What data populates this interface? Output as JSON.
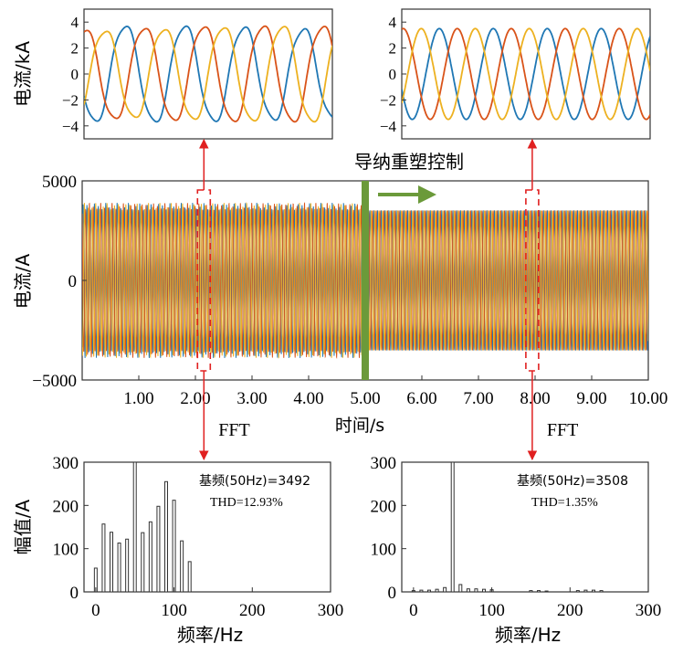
{
  "chart_data": [
    {
      "id": "zoom_before",
      "type": "line",
      "ylabel": "电流/kA",
      "ylim": [
        -5,
        5
      ],
      "yticks": [
        4,
        2,
        0,
        -2,
        -4
      ],
      "ytick_labels": [
        "4",
        "2",
        "0",
        "−2",
        "−4"
      ],
      "series": [
        {
          "phase": 1,
          "color": "#1f77b4",
          "amplitude": 3.6,
          "cycles": 4.2,
          "phase_deg": 200,
          "distortion": 0.13
        },
        {
          "phase": 2,
          "color": "#d95319",
          "amplitude": 3.6,
          "cycles": 4.2,
          "phase_deg": 80,
          "distortion": 0.13
        },
        {
          "phase": 3,
          "color": "#edb120",
          "amplitude": 3.6,
          "cycles": 4.2,
          "phase_deg": 320,
          "distortion": 0.13
        }
      ]
    },
    {
      "id": "zoom_after",
      "type": "line",
      "ylabel": "",
      "ylim": [
        -5,
        5
      ],
      "yticks": [
        4,
        2,
        0,
        -2,
        -4
      ],
      "ytick_labels": [
        "4",
        "2",
        "0",
        "−2",
        "−4"
      ],
      "series": [
        {
          "phase": 1,
          "color": "#1f77b4",
          "amplitude": 3.5,
          "cycles": 4.6,
          "phase_deg": 200,
          "distortion": 0.0
        },
        {
          "phase": 2,
          "color": "#d95319",
          "amplitude": 3.5,
          "cycles": 4.6,
          "phase_deg": 80,
          "distortion": 0.0
        },
        {
          "phase": 3,
          "color": "#edb120",
          "amplitude": 3.5,
          "cycles": 4.6,
          "phase_deg": 320,
          "distortion": 0.0
        }
      ]
    },
    {
      "id": "main_waveform",
      "type": "line",
      "ylabel": "电流/A",
      "xlabel": "时间/s",
      "xlim": [
        0,
        10
      ],
      "ylim": [
        -5000,
        5000
      ],
      "xticks": [
        1,
        2,
        3,
        4,
        5,
        6,
        7,
        8,
        9,
        10
      ],
      "xtick_labels": [
        "1.00",
        "2.00",
        "3.00",
        "4.00",
        "5.00",
        "6.00",
        "7.00",
        "8.00",
        "9.00",
        "10.00"
      ],
      "yticks": [
        5000,
        0,
        -5000
      ],
      "ytick_labels": [
        "5000",
        "0",
        "−5000"
      ],
      "control_switch_time": 5,
      "control_label": "导纳重塑控制",
      "control_color": "#6b9a3a",
      "before": {
        "envelope_peak": 3900,
        "envelope_trough": -3900,
        "mean_amplitude": 3550
      },
      "after": {
        "envelope_peak": 3550,
        "envelope_trough": -3550,
        "mean_amplitude": 3520
      },
      "zoom_windows": [
        2.15,
        7.95
      ],
      "colors": [
        "#1f77b4",
        "#d95319",
        "#edb120"
      ],
      "fft_label": "FFT"
    },
    {
      "id": "fft_before",
      "type": "bar",
      "xlabel": "频率/Hz",
      "ylabel": "幅值/A",
      "xlim": [
        -15,
        300
      ],
      "ylim": [
        0,
        300
      ],
      "xticks": [
        0,
        100,
        200,
        300
      ],
      "yticks": [
        0,
        100,
        200,
        300
      ],
      "frequencies": [
        0,
        10,
        20,
        30,
        40,
        50,
        60,
        70,
        80,
        90,
        100,
        110,
        120
      ],
      "values": [
        55,
        157,
        138,
        113,
        122,
        300,
        137,
        162,
        198,
        255,
        212,
        118,
        70
      ],
      "fundamental_text": "基频(50Hz)=3492",
      "thd_text": "THD=12.93%"
    },
    {
      "id": "fft_after",
      "type": "bar",
      "xlabel": "频率/Hz",
      "ylabel": "",
      "xlim": [
        -15,
        300
      ],
      "ylim": [
        0,
        300
      ],
      "xticks": [
        0,
        100,
        200,
        300
      ],
      "yticks": [
        0,
        100,
        200,
        300
      ],
      "frequencies": [
        0,
        10,
        20,
        30,
        40,
        50,
        60,
        70,
        80,
        90,
        100,
        150,
        160,
        170,
        210,
        220,
        230,
        240
      ],
      "values": [
        3,
        4,
        4,
        6,
        10,
        300,
        17,
        7,
        7,
        6,
        5,
        3,
        3,
        2,
        3,
        4,
        4,
        3
      ],
      "fundamental_text": "基频(50Hz)=3508",
      "thd_text": "THD=1.35%"
    }
  ]
}
